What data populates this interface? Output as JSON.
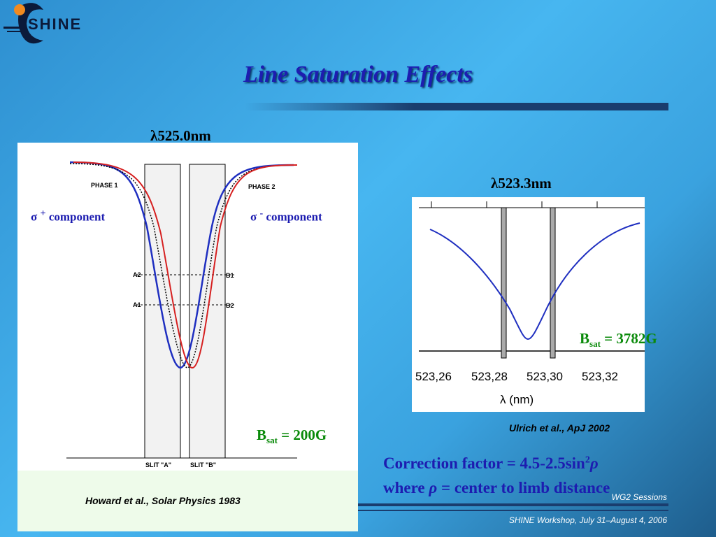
{
  "logo": {
    "text": "SHINE"
  },
  "title": "Line Saturation Effects",
  "left_figure": {
    "heading": {
      "symbol": "λ",
      "text": "525.0nm"
    },
    "labels": {
      "phase1": "PHASE 1",
      "phase2": "PHASE 2",
      "a2": "A2",
      "a1": "A1",
      "b1": "B1",
      "b2": "B2",
      "slit_a": "SLIT \"A\"",
      "slit_b": "SLIT \"B\""
    },
    "sigma_plus": {
      "symbol": "σ",
      "sup": "+",
      "text": " component"
    },
    "sigma_minus": {
      "symbol": "σ",
      "sup": "-",
      "text": " component"
    },
    "bsat": {
      "symbol": "B",
      "sub": "sat",
      "text": " = 200G"
    },
    "caption": "Howard et al., Solar Physics 1983"
  },
  "right_figure": {
    "heading": {
      "symbol": "λ",
      "text": "523.3nm"
    },
    "ticks": [
      "523,26",
      "523,28",
      "523,30",
      "523,32"
    ],
    "axis_label": "λ (nm)",
    "bsat": {
      "symbol": "B",
      "sub": "sat",
      "text": " = 3782G"
    },
    "caption": "Ulrich et al., ApJ 2002"
  },
  "correction": {
    "line1": {
      "text": "Correction factor = 4.5-2.5sin",
      "sup": "2",
      "symbol": "ρ"
    },
    "line2": {
      "text1": "where ",
      "symbol": "ρ",
      "text2": " = center to limb distance"
    }
  },
  "footer": {
    "session": "WG2 Sessions",
    "workshop": "SHINE Workshop, July 31–August 4, 2006"
  }
}
